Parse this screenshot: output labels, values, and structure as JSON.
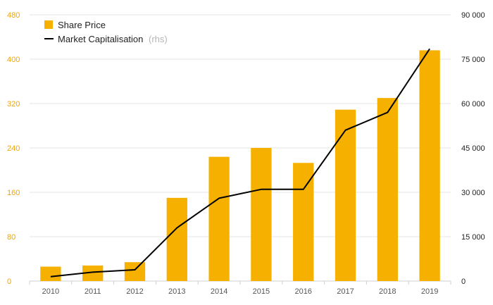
{
  "chart_data": {
    "type": "bar",
    "categories": [
      "2010",
      "2011",
      "2012",
      "2013",
      "2014",
      "2015",
      "2016",
      "2017",
      "2018",
      "2019"
    ],
    "series": [
      {
        "name": "Share Price",
        "type": "bar",
        "axis": "left",
        "color": "#f5b000",
        "values": [
          26,
          28,
          34,
          150,
          224,
          240,
          213,
          309,
          330,
          416
        ]
      },
      {
        "name": "Market Capitalisation",
        "name_suffix": "(rhs)",
        "type": "line",
        "axis": "right",
        "color": "#000000",
        "values": [
          1500,
          3000,
          3800,
          18000,
          28000,
          31000,
          31000,
          51000,
          57000,
          78500
        ]
      }
    ],
    "y_left": {
      "min": 0,
      "max": 480,
      "ticks": [
        0,
        80,
        160,
        240,
        320,
        400,
        480
      ],
      "tick_labels": [
        "0",
        "80",
        "160",
        "240",
        "320",
        "400",
        "480"
      ],
      "color": "#f0a500"
    },
    "y_right": {
      "min": 0,
      "max": 90000,
      "ticks": [
        0,
        15000,
        30000,
        45000,
        60000,
        75000,
        90000
      ],
      "tick_labels": [
        "0",
        "15 000",
        "30 000",
        "45 000",
        "60 000",
        "75 000",
        "90 000"
      ]
    },
    "grid": true,
    "legend_position": "top-left"
  }
}
